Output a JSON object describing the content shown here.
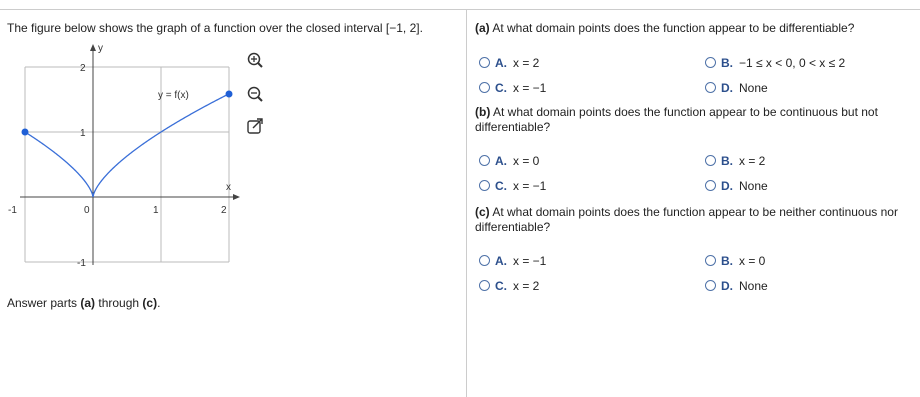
{
  "intro": "The figure below shows the graph of a function over the closed interval [−1, 2].",
  "graph": {
    "y_axis_label": "y",
    "x_axis_label": "x",
    "curve_label": "y = f(x)",
    "x_tick_labels": [
      "-1",
      "0",
      "1",
      "2"
    ],
    "y_tick_labels": [
      "2",
      "1",
      "-1"
    ]
  },
  "footer": [
    "Answer parts ",
    "(a)",
    " through ",
    "(c)",
    "."
  ],
  "questions": [
    {
      "label": "(a)",
      "text": "At what domain points does the function appear to be differentiable?",
      "options": [
        {
          "letter": "A.",
          "text": "x = 2"
        },
        {
          "letter": "B.",
          "text": "−1 ≤ x < 0, 0 < x ≤ 2"
        },
        {
          "letter": "C.",
          "text": "x = −1"
        },
        {
          "letter": "D.",
          "text": "None"
        }
      ]
    },
    {
      "label": "(b)",
      "text": "At what domain points does the function appear to be continuous but not differentiable?",
      "options": [
        {
          "letter": "A.",
          "text": "x = 0"
        },
        {
          "letter": "B.",
          "text": "x = 2"
        },
        {
          "letter": "C.",
          "text": "x = −1"
        },
        {
          "letter": "D.",
          "text": "None"
        }
      ]
    },
    {
      "label": "(c)",
      "text": "At what domain points does the function appear to be neither continuous nor differentiable?",
      "options": [
        {
          "letter": "A.",
          "text": "x = −1"
        },
        {
          "letter": "B.",
          "text": "x = 0"
        },
        {
          "letter": "C.",
          "text": "x = 2"
        },
        {
          "letter": "D.",
          "text": "None"
        }
      ]
    }
  ]
}
